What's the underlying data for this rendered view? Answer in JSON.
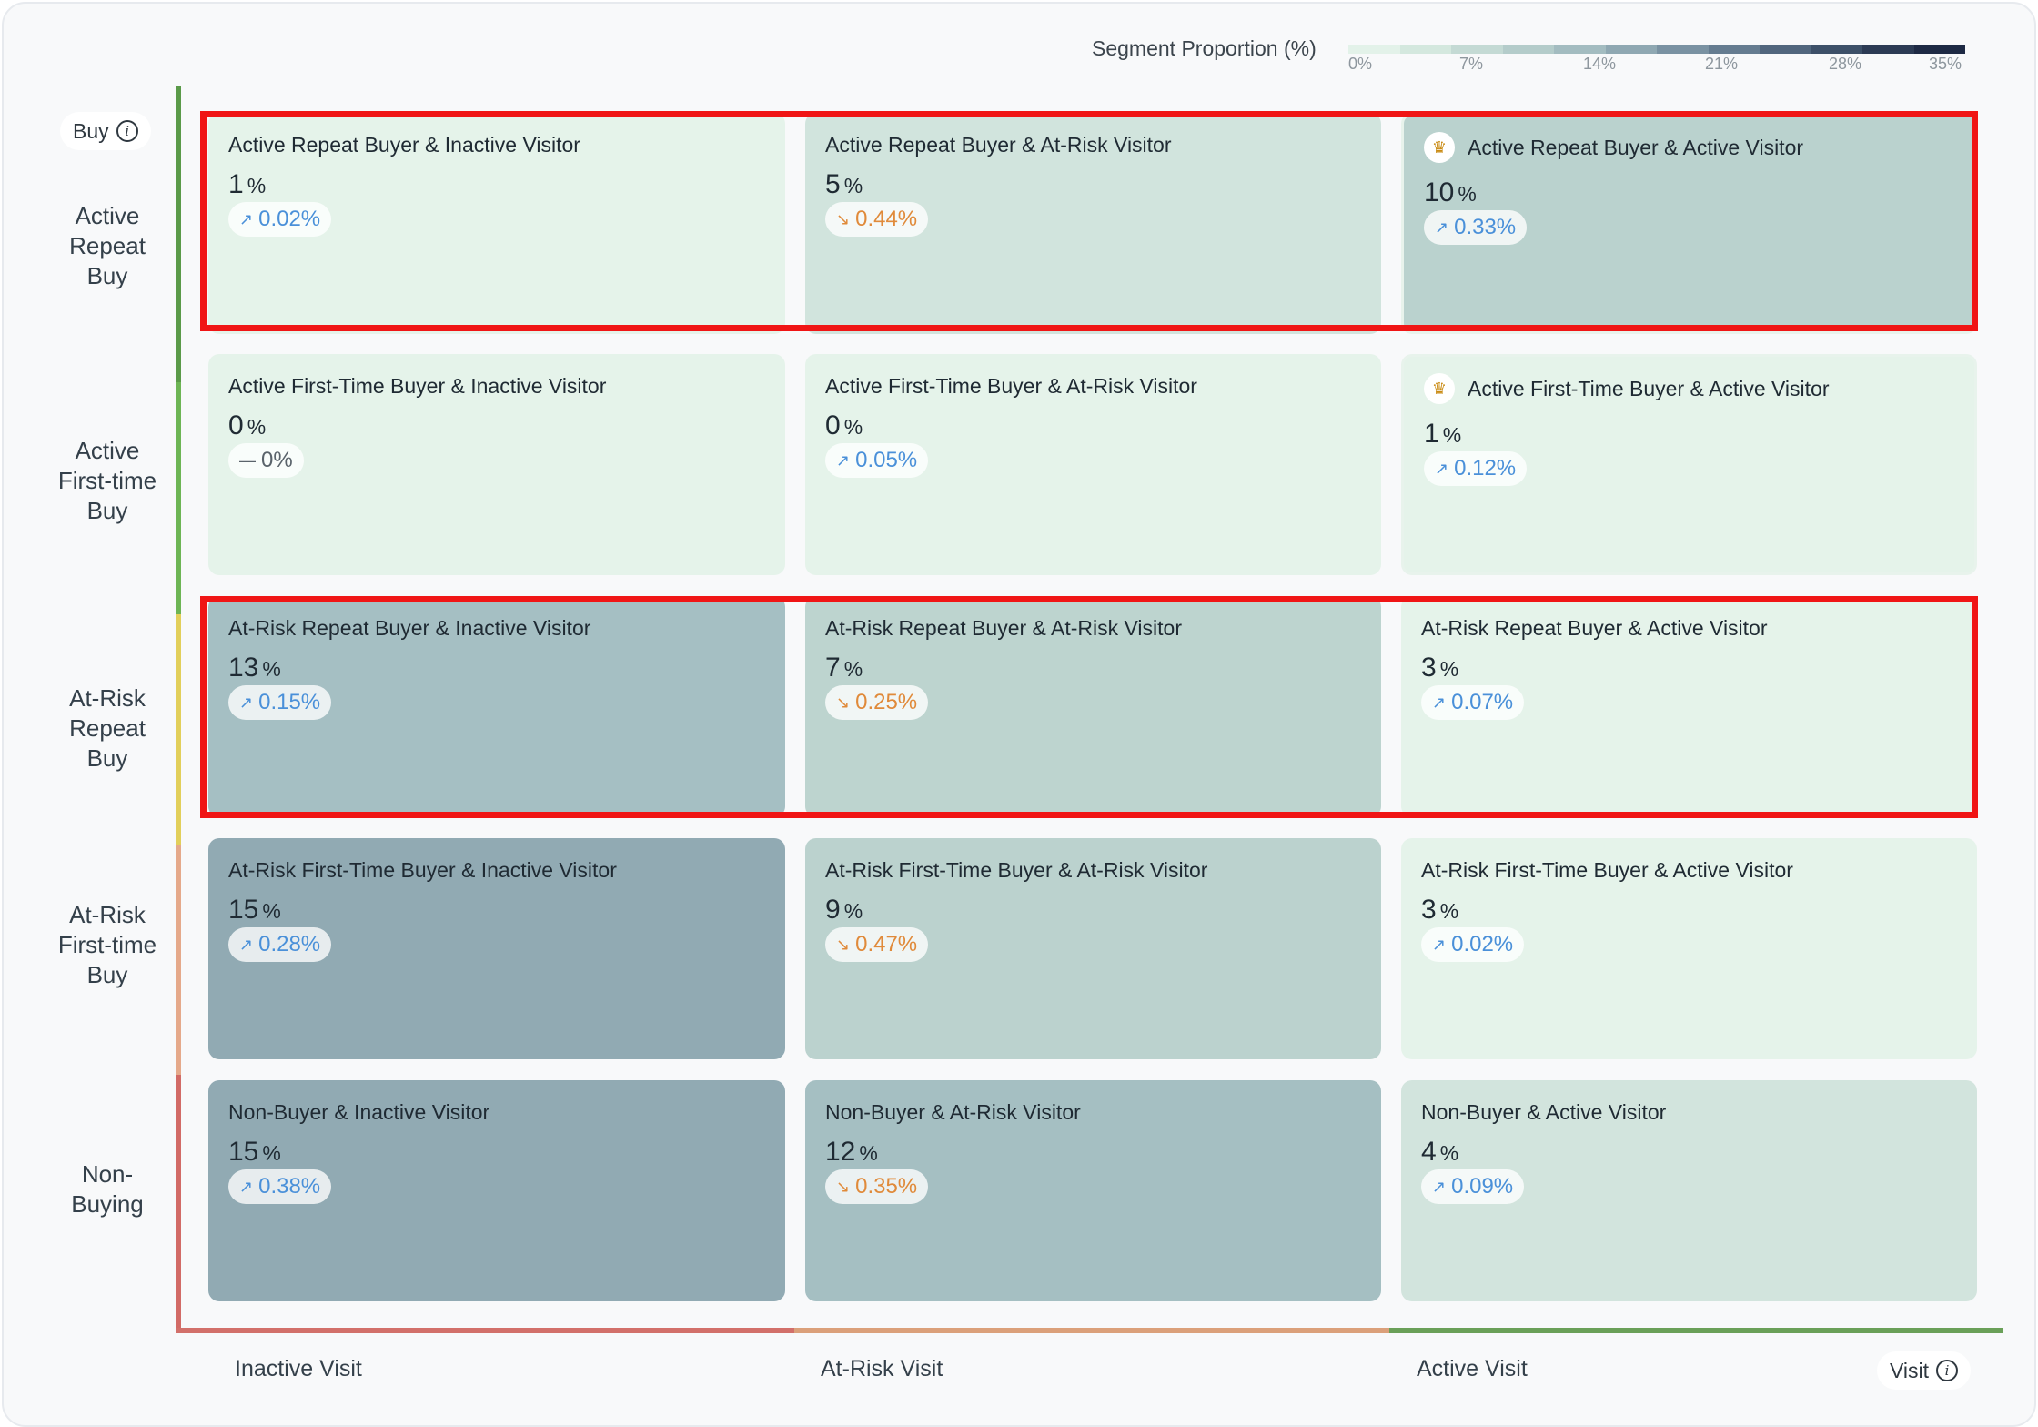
{
  "legend": {
    "title": "Segment Proportion (%)",
    "ticks": [
      "0%",
      "7%",
      "14%",
      "21%",
      "28%",
      "35%"
    ],
    "colors": [
      "#e3f2e9",
      "#d4e8de",
      "#c4dad4",
      "#b4ccca",
      "#a3bcc0",
      "#8fa8b2",
      "#7a92a2",
      "#657c90",
      "#51667d",
      "#3d5068",
      "#2c3b54",
      "#1e2a44"
    ]
  },
  "y_axis": {
    "title": "Buy",
    "rows": [
      "Active Repeat Buy",
      "Active First-time Buy",
      "At-Risk Repeat Buy",
      "At-Risk First-time Buy",
      "Non-Buying"
    ],
    "colors": [
      "#5a9a48",
      "#6db554",
      "#e2cf5a",
      "#e5a98a",
      "#d26b66"
    ]
  },
  "x_axis": {
    "title": "Visit",
    "columns": [
      "Inactive Visit",
      "At-Risk Visit",
      "Active Visit"
    ],
    "colors": [
      "#d2706a",
      "#dba07a",
      "#6aa058"
    ]
  },
  "cells": [
    [
      {
        "title": "Active Repeat Buyer & Inactive Visitor",
        "value": "1",
        "unit": "%",
        "change": "0.02%",
        "trend": "up",
        "bg": "#e5f3ea"
      },
      {
        "title": "Active Repeat Buyer & At-Risk Visitor",
        "value": "5",
        "unit": "%",
        "change": "0.44%",
        "trend": "down",
        "bg": "#d1e4dd"
      },
      {
        "title": "Active Repeat Buyer & Active Visitor",
        "value": "10",
        "unit": "%",
        "change": "0.33%",
        "trend": "up",
        "bg": "#bad2ce",
        "crown": true
      }
    ],
    [
      {
        "title": "Active First-Time Buyer & Inactive Visitor",
        "value": "0",
        "unit": "%",
        "change": "0%",
        "trend": "flat",
        "bg": "#e5f3ea"
      },
      {
        "title": "Active First-Time Buyer & At-Risk Visitor",
        "value": "0",
        "unit": "%",
        "change": "0.05%",
        "trend": "up",
        "bg": "#e5f3ea"
      },
      {
        "title": "Active First-Time Buyer & Active Visitor",
        "value": "1",
        "unit": "%",
        "change": "0.12%",
        "trend": "up",
        "bg": "#e5f3ea",
        "crown": true
      }
    ],
    [
      {
        "title": "At-Risk Repeat Buyer & Inactive Visitor",
        "value": "13",
        "unit": "%",
        "change": "0.15%",
        "trend": "up",
        "bg": "#a5bfc3"
      },
      {
        "title": "At-Risk Repeat Buyer & At-Risk Visitor",
        "value": "7",
        "unit": "%",
        "change": "0.25%",
        "trend": "down",
        "bg": "#bdd4cf"
      },
      {
        "title": "At-Risk Repeat Buyer & Active Visitor",
        "value": "3",
        "unit": "%",
        "change": "0.07%",
        "trend": "up",
        "bg": "#e5f3ea"
      }
    ],
    [
      {
        "title": "At-Risk First-Time Buyer & Inactive Visitor",
        "value": "15",
        "unit": "%",
        "change": "0.28%",
        "trend": "up",
        "bg": "#91aab3"
      },
      {
        "title": "At-Risk First-Time Buyer & At-Risk Visitor",
        "value": "9",
        "unit": "%",
        "change": "0.47%",
        "trend": "down",
        "bg": "#bbd2ce"
      },
      {
        "title": "At-Risk First-Time Buyer & Active Visitor",
        "value": "3",
        "unit": "%",
        "change": "0.02%",
        "trend": "up",
        "bg": "#e5f3ea"
      }
    ],
    [
      {
        "title": "Non-Buyer & Inactive Visitor",
        "value": "15",
        "unit": "%",
        "change": "0.38%",
        "trend": "up",
        "bg": "#91aab3"
      },
      {
        "title": "Non-Buyer & At-Risk Visitor",
        "value": "12",
        "unit": "%",
        "change": "0.35%",
        "trend": "down",
        "bg": "#a5bfc2"
      },
      {
        "title": "Non-Buyer & Active Visitor",
        "value": "4",
        "unit": "%",
        "change": "0.09%",
        "trend": "up",
        "bg": "#d2e4dd"
      }
    ]
  ],
  "highlight_color": "#f01515",
  "icons": {
    "info": "info-icon",
    "crown": "crown-icon",
    "trend_up": "trend-up-icon",
    "trend_down": "trend-down-icon",
    "trend_flat": "trend-flat-icon"
  }
}
